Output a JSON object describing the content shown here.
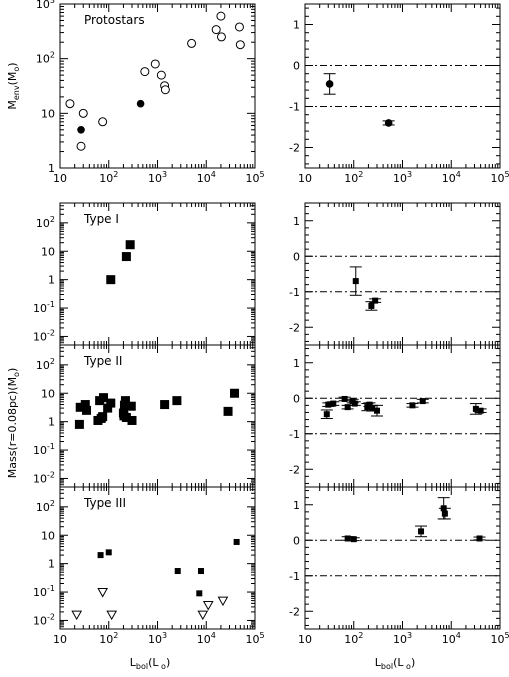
{
  "figure": {
    "ylabel_top": "M_env(M_o)",
    "ylabel_mid": "Mass(r=0.08pc)(M_o)",
    "xlabel_left": "L_bol(L_o)",
    "xlabel_right": "L_bol(L_o)"
  },
  "chart_data": [
    {
      "id": "protostars-left",
      "type": "scatter",
      "label": "Protostars",
      "x_scale": "log",
      "y_scale": "log",
      "xlim": [
        10,
        100000
      ],
      "ylim": [
        1,
        1000
      ],
      "x_ticks": [
        "10",
        "10^2",
        "10^3",
        "10^4",
        "10^5"
      ],
      "y_ticks": [
        "1",
        "10",
        "10^2",
        "10^3"
      ],
      "series": [
        {
          "marker": "open-circle",
          "points": [
            [
              16,
              15
            ],
            [
              27,
              2.5
            ],
            [
              30,
              10
            ],
            [
              75,
              7
            ],
            [
              550,
              58
            ],
            [
              900,
              80
            ],
            [
              1200,
              50
            ],
            [
              1400,
              32
            ],
            [
              1450,
              27
            ],
            [
              5000,
              190
            ],
            [
              16000,
              340
            ],
            [
              20000,
              600
            ],
            [
              20500,
              250
            ],
            [
              48000,
              380
            ],
            [
              50000,
              180
            ]
          ]
        },
        {
          "marker": "filled-circle",
          "points": [
            [
              27,
              5
            ],
            [
              450,
              15
            ]
          ]
        }
      ]
    },
    {
      "id": "protostars-right",
      "type": "scatter",
      "x_scale": "log",
      "y_scale": "linear",
      "xlim": [
        10,
        100000
      ],
      "ylim": [
        -2.5,
        1.5
      ],
      "x_ticks": [
        "10",
        "10^2",
        "10^3",
        "10^4",
        "10^5"
      ],
      "y_ticks": [
        "-2",
        "-1",
        "0",
        "1"
      ],
      "ref_lines": [
        0,
        -1
      ],
      "series": [
        {
          "marker": "filled-circle",
          "points": [
            {
              "x": 32,
              "y": -0.45,
              "err_hi": 0.25,
              "err_lo": 0.25
            },
            {
              "x": 520,
              "y": -1.4,
              "err_hi": 0.05,
              "err_lo": 0.05
            }
          ]
        }
      ]
    },
    {
      "id": "type1-left",
      "type": "scatter",
      "label": "Type I",
      "x_scale": "log",
      "y_scale": "log",
      "xlim": [
        10,
        100000
      ],
      "ylim": [
        0.005,
        500
      ],
      "x_ticks": [],
      "y_ticks": [
        "10^-2",
        "10^-1",
        "1",
        "10",
        "10^2"
      ],
      "series": [
        {
          "marker": "filled-square-large",
          "points": [
            [
              110,
              1.0
            ],
            [
              230,
              6.5
            ],
            [
              275,
              17
            ]
          ]
        }
      ]
    },
    {
      "id": "type1-right",
      "type": "scatter",
      "x_scale": "log",
      "y_scale": "linear",
      "xlim": [
        10,
        100000
      ],
      "ylim": [
        -2.5,
        1.5
      ],
      "x_ticks": [],
      "y_ticks": [
        "-2",
        "-1",
        "0",
        "1"
      ],
      "ref_lines": [
        0,
        -1
      ],
      "series": [
        {
          "marker": "filled-square",
          "points": [
            {
              "x": 110,
              "y": -0.7,
              "err_hi": 0.4,
              "err_lo": 0.4
            },
            {
              "x": 230,
              "y": -1.4,
              "err_hi": 0.12,
              "err_lo": 0.12
            },
            {
              "x": 275,
              "y": -1.25,
              "err_hi": 0.05,
              "err_lo": 0.05
            }
          ]
        }
      ]
    },
    {
      "id": "type2-left",
      "type": "scatter",
      "label": "Type II",
      "x_scale": "log",
      "y_scale": "log",
      "xlim": [
        10,
        100000
      ],
      "ylim": [
        0.005,
        500
      ],
      "x_ticks": [],
      "y_ticks": [
        "10^-2",
        "10^-1",
        "1",
        "10",
        "10^2"
      ],
      "series": [
        {
          "marker": "filled-square-large",
          "points": [
            [
              25,
              0.8
            ],
            [
              26,
              3.2
            ],
            [
              33,
              4.0
            ],
            [
              35,
              2.5
            ],
            [
              60,
              1.1
            ],
            [
              65,
              5.5
            ],
            [
              70,
              1.3
            ],
            [
              75,
              1.5
            ],
            [
              78,
              7.0
            ],
            [
              95,
              3.0
            ],
            [
              110,
              4.5
            ],
            [
              200,
              2.0
            ],
            [
              205,
              1.6
            ],
            [
              210,
              3.8
            ],
            [
              220,
              5.5
            ],
            [
              230,
              1.4
            ],
            [
              290,
              3.5
            ],
            [
              300,
              1.1
            ],
            [
              1400,
              4.0
            ],
            [
              2500,
              5.5
            ],
            [
              28000,
              2.3
            ],
            [
              38000,
              10
            ]
          ]
        }
      ]
    },
    {
      "id": "type2-right",
      "type": "scatter",
      "x_scale": "log",
      "y_scale": "linear",
      "xlim": [
        10,
        100000
      ],
      "ylim": [
        -2.5,
        1.5
      ],
      "x_ticks": [],
      "y_ticks": [
        "-2",
        "-1",
        "0",
        "1"
      ],
      "ref_lines": [
        0,
        -1
      ],
      "series": [
        {
          "marker": "filled-square",
          "points": [
            {
              "x": 28,
              "y": -0.45,
              "err_hi": 0.12,
              "err_lo": 0.12
            },
            {
              "x": 30,
              "y": -0.18,
              "err_hi": 0.05,
              "err_lo": 0.05
            },
            {
              "x": 38,
              "y": -0.15,
              "err_hi": 0.05,
              "err_lo": 0.05
            },
            {
              "x": 65,
              "y": -0.02,
              "err_hi": 0.05,
              "err_lo": 0.05
            },
            {
              "x": 75,
              "y": -0.25,
              "err_hi": 0.05,
              "err_lo": 0.05
            },
            {
              "x": 95,
              "y": -0.08,
              "err_hi": 0.05,
              "err_lo": 0.05
            },
            {
              "x": 105,
              "y": -0.15,
              "err_hi": 0.05,
              "err_lo": 0.05
            },
            {
              "x": 190,
              "y": -0.25,
              "err_hi": 0.1,
              "err_lo": 0.1
            },
            {
              "x": 210,
              "y": -0.18,
              "err_hi": 0.05,
              "err_lo": 0.05
            },
            {
              "x": 240,
              "y": -0.28,
              "err_hi": 0.08,
              "err_lo": 0.08
            },
            {
              "x": 300,
              "y": -0.35,
              "err_hi": 0.15,
              "err_lo": 0.15
            },
            {
              "x": 1600,
              "y": -0.2,
              "err_hi": 0.05,
              "err_lo": 0.05
            },
            {
              "x": 2600,
              "y": -0.08,
              "err_hi": 0.05,
              "err_lo": 0.05
            },
            {
              "x": 32000,
              "y": -0.3,
              "err_hi": 0.15,
              "err_lo": 0.15
            },
            {
              "x": 40000,
              "y": -0.35,
              "err_hi": 0.05,
              "err_lo": 0.05
            }
          ]
        }
      ]
    },
    {
      "id": "type3-left",
      "type": "scatter",
      "label": "Type III",
      "x_scale": "log",
      "y_scale": "log",
      "xlim": [
        10,
        100000
      ],
      "ylim": [
        0.005,
        500
      ],
      "x_ticks": [
        "10",
        "10^2",
        "10^3",
        "10^4",
        "10^5"
      ],
      "y_ticks": [
        "10^-2",
        "10^-1",
        "1",
        "10",
        "10^2"
      ],
      "series": [
        {
          "marker": "filled-square",
          "points": [
            [
              68,
              2.0
            ],
            [
              100,
              2.5
            ],
            [
              2600,
              0.55
            ],
            [
              7200,
              0.09
            ],
            [
              7800,
              0.55
            ],
            [
              42000,
              5.8
            ]
          ]
        },
        {
          "marker": "open-triangle-down",
          "points": [
            [
              22,
              0.016
            ],
            [
              75,
              0.1
            ],
            [
              115,
              0.016
            ],
            [
              8500,
              0.016
            ],
            [
              11000,
              0.035
            ],
            [
              22000,
              0.05
            ]
          ]
        }
      ]
    },
    {
      "id": "type3-right",
      "type": "scatter",
      "x_scale": "log",
      "y_scale": "linear",
      "xlim": [
        10,
        100000
      ],
      "ylim": [
        -2.5,
        1.5
      ],
      "x_ticks": [
        "10",
        "10^2",
        "10^3",
        "10^4",
        "10^5"
      ],
      "y_ticks": [
        "-2",
        "-1",
        "0",
        "1"
      ],
      "ref_lines": [
        0,
        -1
      ],
      "series": [
        {
          "marker": "filled-square",
          "points": [
            {
              "x": 75,
              "y": 0.05,
              "err_hi": 0.05,
              "err_lo": 0.05
            },
            {
              "x": 100,
              "y": 0.03,
              "err_hi": 0.04,
              "err_lo": 0.04
            },
            {
              "x": 2400,
              "y": 0.25,
              "err_hi": 0.15,
              "err_lo": 0.15
            },
            {
              "x": 7000,
              "y": 0.9,
              "err_hi": 0.3,
              "err_lo": 0.3
            },
            {
              "x": 7400,
              "y": 0.75,
              "err_hi": 0.15,
              "err_lo": 0.15
            },
            {
              "x": 38000,
              "y": 0.05,
              "err_hi": 0.04,
              "err_lo": 0.04
            }
          ]
        }
      ]
    }
  ]
}
